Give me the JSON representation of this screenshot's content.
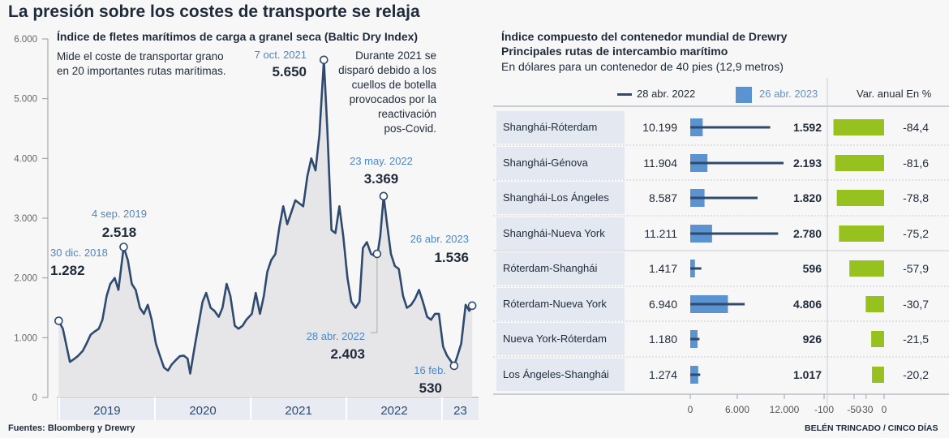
{
  "title": "La presión sobre los costes de transporte se relaja",
  "left_panel": {
    "heading": "Índice de fletes marítimos de carga a granel seca (Baltic Dry Index)",
    "description_line1": "Mide el coste de transportar grano",
    "description_line2": "en 20 importantes rutas marítimas.",
    "note_lines": [
      "Durante 2021 se",
      "disparó debido a los",
      "cuellos de botella",
      "provocados por la",
      "reactivación",
      "pos-Covid."
    ],
    "annotations": [
      {
        "date_label": "30 dic. 2018",
        "value_label": "1.282"
      },
      {
        "date_label": "4 sep. 2019",
        "value_label": "2.518"
      },
      {
        "date_label": "7 oct. 2021",
        "value_label": "5.650"
      },
      {
        "date_label": "23 may. 2022",
        "value_label": "3.369"
      },
      {
        "date_label": "28 abr. 2022",
        "value_label": "2.403"
      },
      {
        "date_label": "16 feb.",
        "value_label": "530"
      },
      {
        "date_label": "26 abr. 2023",
        "value_label": "1.536"
      }
    ]
  },
  "right_panel": {
    "heading_line1": "Índice compuesto del contenedor mundial de Drewry",
    "heading_line2": "Principales rutas de intercambio marítimo",
    "subheading": "En dólares para un contenedor de 40 pies (12,9 metros)",
    "legend_2022": "28 abr. 2022",
    "legend_2023": "26 abr. 2023",
    "var_header": "Var. anual En %"
  },
  "footer": {
    "sources": "Fuentes: Bloomberg y Drewry",
    "credit": "BELÉN TRINCADO / CINCO DÍAS"
  },
  "colors": {
    "line": "#2e4a6e",
    "area": "#e6e6e8",
    "bar_2023": "#5b93d1",
    "bar_2022_line": "#2e4a6e",
    "var_bar": "#97c11f",
    "annotation": "#4e86c5",
    "route_bg": "#e3e8f1"
  },
  "chart_data": [
    {
      "type": "line",
      "title": "Índice de fletes marítimos de carga a granel seca (Baltic Dry Index)",
      "ylim": [
        0,
        6000
      ],
      "y_ticks": [
        "0",
        "1.000",
        "2.000",
        "3.000",
        "4.000",
        "5.000",
        "6.000"
      ],
      "x_ticks": [
        "2019",
        "2020",
        "2021",
        "2022",
        "23"
      ],
      "grid": false,
      "series": [
        {
          "x": [
            "2018-12-30",
            "2019-01-15",
            "2019-02-01",
            "2019-02-11",
            "2019-03-01",
            "2019-03-15",
            "2019-04-01",
            "2019-04-15",
            "2019-05-01",
            "2019-05-15",
            "2019-06-01",
            "2019-06-15",
            "2019-07-01",
            "2019-07-15",
            "2019-08-01",
            "2019-08-15",
            "2019-09-04",
            "2019-09-20",
            "2019-10-05",
            "2019-10-20",
            "2019-11-05",
            "2019-11-20",
            "2019-12-05",
            "2019-12-20",
            "2020-01-05",
            "2020-01-20",
            "2020-02-05",
            "2020-02-20",
            "2020-03-05",
            "2020-03-20",
            "2020-04-05",
            "2020-04-20",
            "2020-05-05",
            "2020-05-15",
            "2020-06-01",
            "2020-06-15",
            "2020-07-01",
            "2020-07-15",
            "2020-08-01",
            "2020-08-15",
            "2020-09-01",
            "2020-09-15",
            "2020-10-01",
            "2020-10-15",
            "2020-11-01",
            "2020-11-15",
            "2020-12-01",
            "2020-12-15",
            "2021-01-05",
            "2021-01-20",
            "2021-02-05",
            "2021-02-20",
            "2021-03-05",
            "2021-03-20",
            "2021-04-05",
            "2021-04-20",
            "2021-05-05",
            "2021-05-20",
            "2021-06-05",
            "2021-06-20",
            "2021-07-05",
            "2021-07-20",
            "2021-08-05",
            "2021-08-20",
            "2021-09-05",
            "2021-09-20",
            "2021-10-07",
            "2021-10-20",
            "2021-11-05",
            "2021-11-20",
            "2021-12-05",
            "2021-12-20",
            "2022-01-05",
            "2022-01-20",
            "2022-02-05",
            "2022-02-20",
            "2022-03-05",
            "2022-03-20",
            "2022-04-05",
            "2022-04-28",
            "2022-05-10",
            "2022-05-23",
            "2022-06-05",
            "2022-06-20",
            "2022-07-05",
            "2022-07-20",
            "2022-08-05",
            "2022-08-20",
            "2022-09-05",
            "2022-09-20",
            "2022-10-05",
            "2022-10-20",
            "2022-11-05",
            "2022-11-20",
            "2022-12-05",
            "2022-12-20",
            "2023-01-05",
            "2023-01-20",
            "2023-02-16",
            "2023-03-01",
            "2023-03-15",
            "2023-04-01",
            "2023-04-15",
            "2023-04-26"
          ],
          "y": [
            1282,
            1150,
            800,
            595,
            650,
            700,
            780,
            900,
            1050,
            1100,
            1150,
            1300,
            1700,
            1900,
            2000,
            1800,
            2518,
            2300,
            1900,
            1800,
            1500,
            1400,
            1550,
            1300,
            900,
            700,
            500,
            450,
            550,
            620,
            690,
            700,
            650,
            400,
            850,
            1200,
            1600,
            1750,
            1500,
            1450,
            1350,
            1500,
            1900,
            1700,
            1200,
            1150,
            1200,
            1300,
            1400,
            1750,
            1400,
            1700,
            2100,
            2300,
            2400,
            2850,
            3200,
            2900,
            3100,
            3300,
            3250,
            3200,
            3700,
            4000,
            3800,
            4400,
            5650,
            4500,
            2800,
            2750,
            3200,
            2700,
            2000,
            1600,
            1500,
            1600,
            2500,
            2600,
            2403,
            2350,
            2700,
            3369,
            2900,
            2400,
            2200,
            2150,
            1700,
            1500,
            1550,
            1650,
            1800,
            1600,
            1350,
            1300,
            1400,
            1400,
            850,
            700,
            530,
            700,
            900,
            1550,
            1450,
            1536
          ]
        }
      ]
    },
    {
      "type": "bar",
      "title": "Índice compuesto del contenedor mundial de Drewry",
      "categories": [
        "Shanghái-Róterdam",
        "Shanghái-Génova",
        "Shanghái-Los Ángeles",
        "Shanghái-Nueva York",
        "Róterdam-Shanghái",
        "Róterdam-Nueva York",
        "Nueva York-Róterdam",
        "Los Ángeles-Shanghái"
      ],
      "series": [
        {
          "name": "28 abr. 2022",
          "values": [
            10199,
            11904,
            8587,
            11211,
            1417,
            6940,
            1180,
            1274
          ],
          "labels": [
            "10.199",
            "11.904",
            "8.587",
            "11.211",
            "1.417",
            "6.940",
            "1.180",
            "1.274"
          ]
        },
        {
          "name": "26 abr. 2023",
          "values": [
            1592,
            2193,
            1820,
            2780,
            596,
            4806,
            926,
            1017
          ],
          "labels": [
            "1.592",
            "2.193",
            "1.820",
            "2.780",
            "596",
            "4.806",
            "926",
            "1.017"
          ]
        }
      ],
      "xlim": [
        0,
        12000
      ],
      "x_ticks": [
        "0",
        "6.000",
        "12.000"
      ]
    },
    {
      "type": "bar",
      "title": "Var. anual En %",
      "categories": [
        "Shanghái-Róterdam",
        "Shanghái-Génova",
        "Shanghái-Los Ángeles",
        "Shanghái-Nueva York",
        "Róterdam-Shanghái",
        "Róterdam-Nueva York",
        "Nueva York-Róterdam",
        "Los Ángeles-Shanghái"
      ],
      "values": [
        -84.4,
        -81.6,
        -78.8,
        -75.2,
        -57.9,
        -30.7,
        -21.5,
        -20.2
      ],
      "labels": [
        "-84,4",
        "-81,6",
        "-78,8",
        "-75,2",
        "-57,9",
        "-30,7",
        "-21,5",
        "-20,2"
      ],
      "xlim": [
        -100,
        0
      ],
      "x_ticks": [
        "-100",
        "-50",
        "-30",
        "0"
      ]
    }
  ]
}
